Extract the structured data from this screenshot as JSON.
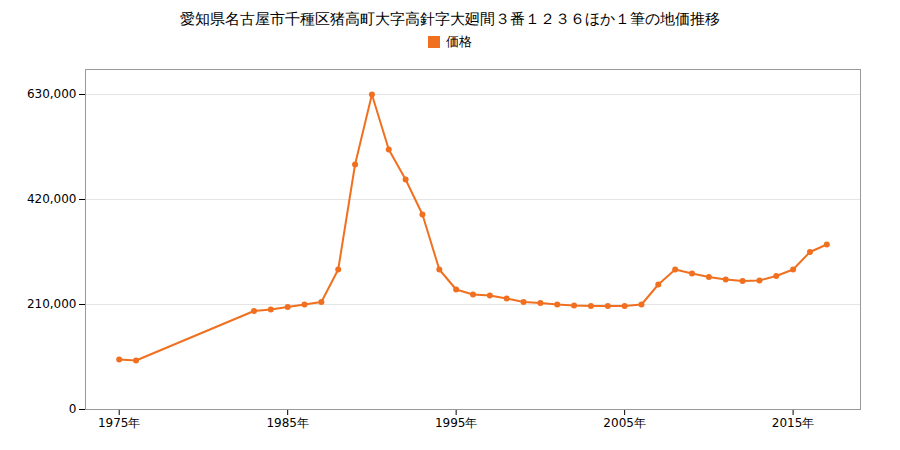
{
  "chart_data": {
    "type": "line",
    "title": "愛知県名古屋市千種区猪高町大字高針字大廻間３番１２３６ほか１筆の地価推移",
    "x": [
      1975,
      1976,
      1983,
      1984,
      1985,
      1986,
      1987,
      1988,
      1989,
      1990,
      1991,
      1992,
      1993,
      1994,
      1995,
      1996,
      1997,
      1998,
      1999,
      2000,
      2001,
      2002,
      2003,
      2004,
      2005,
      2006,
      2007,
      2008,
      2009,
      2010,
      2011,
      2012,
      2013,
      2014,
      2015,
      2016,
      2017
    ],
    "series": [
      {
        "name": "価格",
        "color": "#f07020",
        "marker": "circle",
        "values": [
          100000,
          98000,
          197000,
          200000,
          205000,
          210000,
          215000,
          280000,
          490000,
          630000,
          520000,
          460000,
          390000,
          280000,
          240000,
          230000,
          228000,
          222000,
          215000,
          213000,
          210000,
          208000,
          207000,
          207000,
          207000,
          210000,
          250000,
          280000,
          272000,
          265000,
          260000,
          257000,
          258000,
          267000,
          280000,
          315000,
          330000
        ]
      }
    ],
    "xlim": [
      1973,
      2019
    ],
    "xticks": [
      {
        "value": 1975,
        "label": "1975年"
      },
      {
        "value": 1985,
        "label": "1985年"
      },
      {
        "value": 1995,
        "label": "1995年"
      },
      {
        "value": 2005,
        "label": "2005年"
      },
      {
        "value": 2015,
        "label": "2015年"
      }
    ],
    "ylim": [
      0,
      680000
    ],
    "yticks": [
      0,
      {
        "value": 210000,
        "label": "210,000"
      },
      {
        "value": 420000,
        "label": "420,000"
      },
      {
        "value": 630000,
        "label": "630,000"
      }
    ],
    "grid": true,
    "legend": "top"
  }
}
